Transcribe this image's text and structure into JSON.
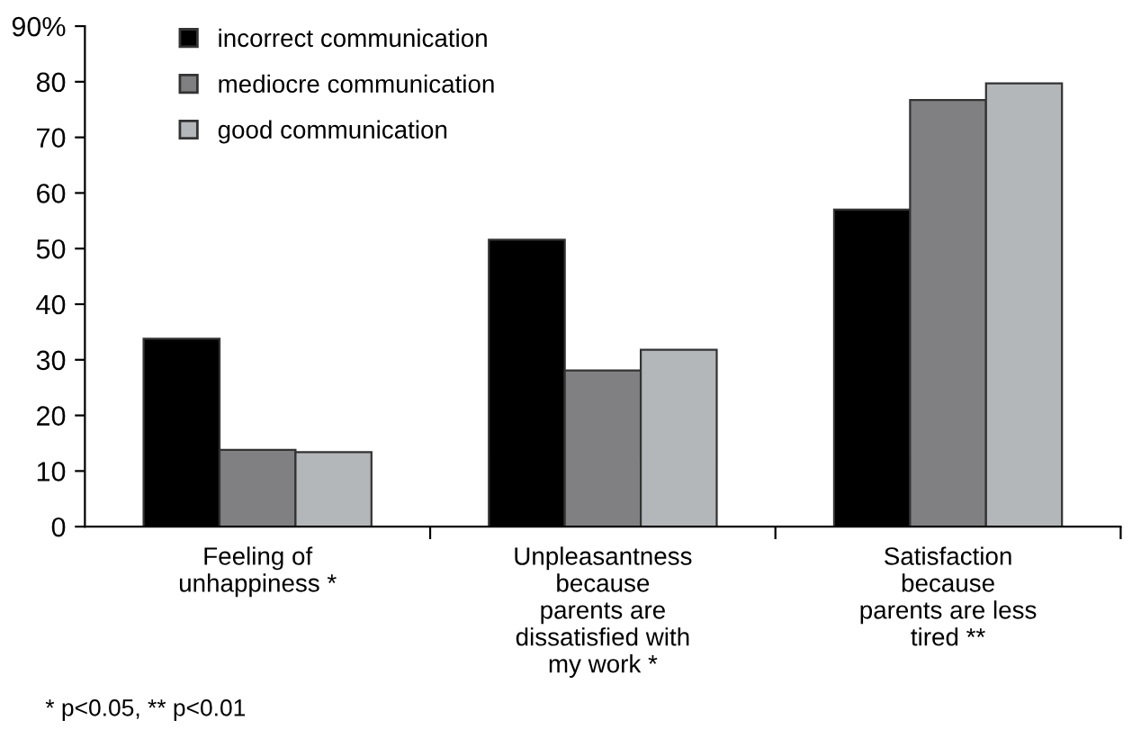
{
  "chart_data": {
    "type": "bar",
    "categories": [
      "Feeling of\nunhappiness *",
      "Unpleasantness\nbecause\nparents are\ndissatisfied with\nmy work *",
      "Satisfaction\nbecause\nparents are less\ntired **"
    ],
    "series": [
      {
        "name": "incorrect communication",
        "color": "#000000",
        "values": [
          33.8,
          51.6,
          57.0
        ]
      },
      {
        "name": "mediocre communication",
        "color": "#808083",
        "values": [
          13.8,
          28.1,
          76.7
        ]
      },
      {
        "name": "good communication",
        "color": "#b4b7ba",
        "values": [
          13.4,
          31.8,
          79.7
        ]
      }
    ],
    "ylim": [
      0,
      90
    ],
    "yticks": [
      0,
      10,
      20,
      30,
      40,
      50,
      60,
      70,
      80,
      {
        "value": 90,
        "label": "90%"
      }
    ],
    "grid": false,
    "legend": "top left",
    "annotations": [
      "* p<0.05, ** p<0.01"
    ]
  }
}
